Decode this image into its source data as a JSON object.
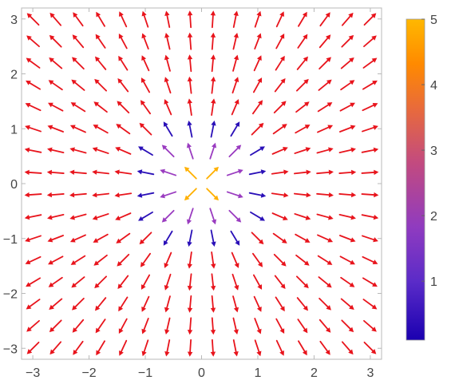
{
  "chart_data": {
    "type": "vector-field",
    "title": "",
    "xlabel": "",
    "ylabel": "",
    "field": "radial outward from origin; color encodes magnitude",
    "x_range": [
      -3.2,
      3.2
    ],
    "y_range": [
      -3.2,
      3.2
    ],
    "grid_x": [
      -3.0,
      -2.6,
      -2.2,
      -1.8,
      -1.4,
      -1.0,
      -0.6,
      -0.2,
      0.2,
      0.6,
      1.0,
      1.4,
      1.8,
      2.2,
      2.6,
      3.0
    ],
    "grid_y": [
      -3.0,
      -2.6,
      -2.2,
      -1.8,
      -1.4,
      -1.0,
      -0.6,
      -0.2,
      0.2,
      0.6,
      1.0,
      1.4,
      1.8,
      2.2,
      2.6,
      3.0
    ],
    "x_ticks": [
      -3,
      -2,
      -1,
      0,
      1,
      2,
      3
    ],
    "x_tick_labels": [
      "−3",
      "−2",
      "−1",
      "0",
      "1",
      "2",
      "3"
    ],
    "y_ticks": [
      -3,
      -2,
      -1,
      0,
      1,
      2,
      3
    ],
    "y_tick_labels": [
      "−3",
      "−2",
      "−1",
      "0",
      "1",
      "2",
      "3"
    ],
    "grid": false,
    "colorbar": {
      "min": 0.1,
      "max": 5,
      "ticks": [
        1,
        2,
        3,
        4,
        5
      ],
      "tick_labels": [
        "1",
        "2",
        "3",
        "4",
        "5"
      ],
      "placement": "right",
      "colors": [
        "#1a00b0",
        "#5a2bc8",
        "#8f3bc0",
        "#c24a80",
        "#e86a3c",
        "#ff8a00",
        "#ffb800"
      ]
    },
    "arrow_color_far": "#e8141c"
  }
}
